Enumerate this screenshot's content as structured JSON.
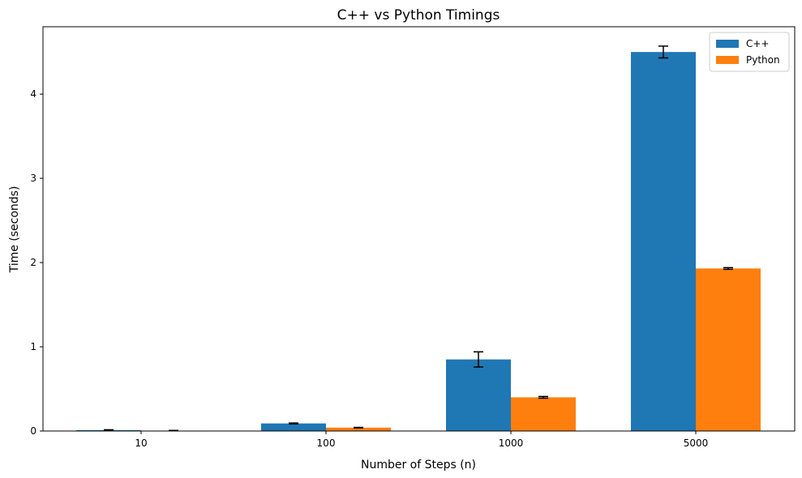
{
  "chart_data": {
    "type": "bar",
    "title": "C++ vs Python Timings",
    "xlabel": "Number of Steps (n)",
    "ylabel": "Time (seconds)",
    "categories": [
      "10",
      "100",
      "1000",
      "5000"
    ],
    "ylim": [
      0,
      4.8
    ],
    "yticks": [
      0,
      1,
      2,
      3,
      4
    ],
    "series": [
      {
        "name": "C++",
        "color": "#1f77b4",
        "values": [
          0.01,
          0.09,
          0.85,
          4.5
        ],
        "errors": [
          0.005,
          0.005,
          0.09,
          0.07
        ]
      },
      {
        "name": "Python",
        "color": "#ff7f0e",
        "values": [
          0.005,
          0.04,
          0.4,
          1.93
        ],
        "errors": [
          0.002,
          0.003,
          0.01,
          0.01
        ]
      }
    ],
    "grid": false,
    "legend_position": "top-right",
    "error_bars": true
  }
}
